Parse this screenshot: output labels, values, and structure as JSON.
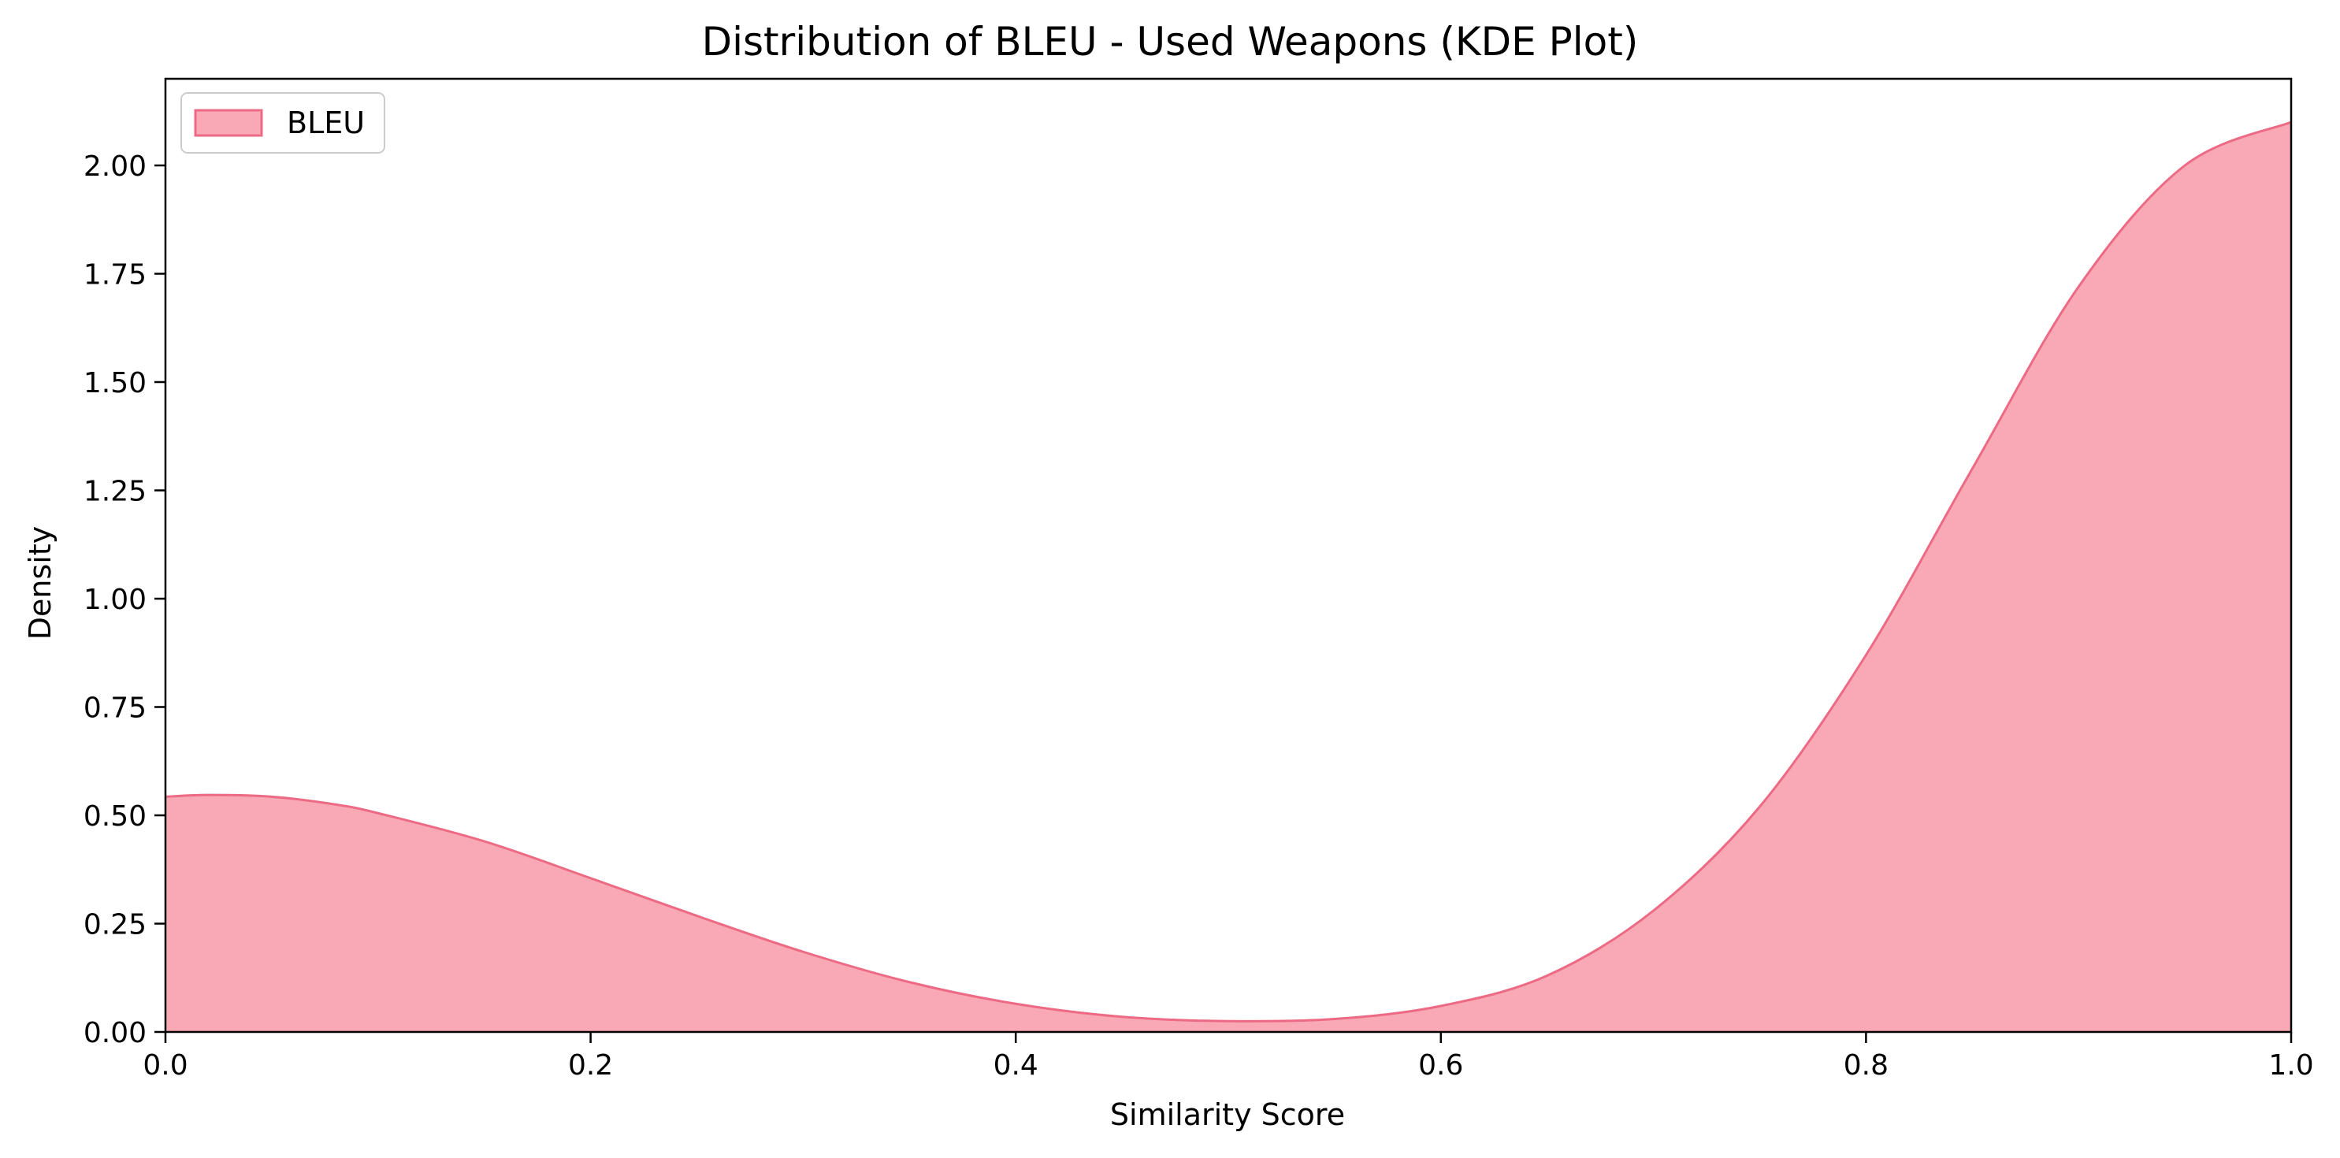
{
  "chart_data": {
    "type": "area",
    "title": "Distribution of BLEU - Used Weapons (KDE Plot)",
    "xlabel": "Similarity Score",
    "ylabel": "Density",
    "xlim": [
      0.0,
      1.0
    ],
    "ylim": [
      0.0,
      2.2
    ],
    "xticks": [
      "0.0",
      "0.2",
      "0.4",
      "0.6",
      "0.8",
      "1.0"
    ],
    "yticks": [
      "0.00",
      "0.25",
      "0.50",
      "0.75",
      "1.00",
      "1.25",
      "1.50",
      "1.75",
      "2.00"
    ],
    "grid": false,
    "legend": {
      "placement": "top-left",
      "entries": [
        "BLEU"
      ]
    },
    "colors": {
      "fill": "#f9a8b6",
      "line": "#ec6a84"
    },
    "series": [
      {
        "name": "BLEU",
        "x": [
          0.0,
          0.02,
          0.05,
          0.08,
          0.1,
          0.15,
          0.2,
          0.25,
          0.3,
          0.35,
          0.4,
          0.45,
          0.5,
          0.55,
          0.6,
          0.65,
          0.7,
          0.75,
          0.8,
          0.85,
          0.9,
          0.95,
          1.0
        ],
        "values": [
          0.543,
          0.547,
          0.543,
          0.525,
          0.505,
          0.44,
          0.355,
          0.268,
          0.185,
          0.115,
          0.065,
          0.035,
          0.025,
          0.03,
          0.06,
          0.13,
          0.28,
          0.52,
          0.87,
          1.3,
          1.72,
          2.0,
          2.1
        ]
      }
    ]
  }
}
